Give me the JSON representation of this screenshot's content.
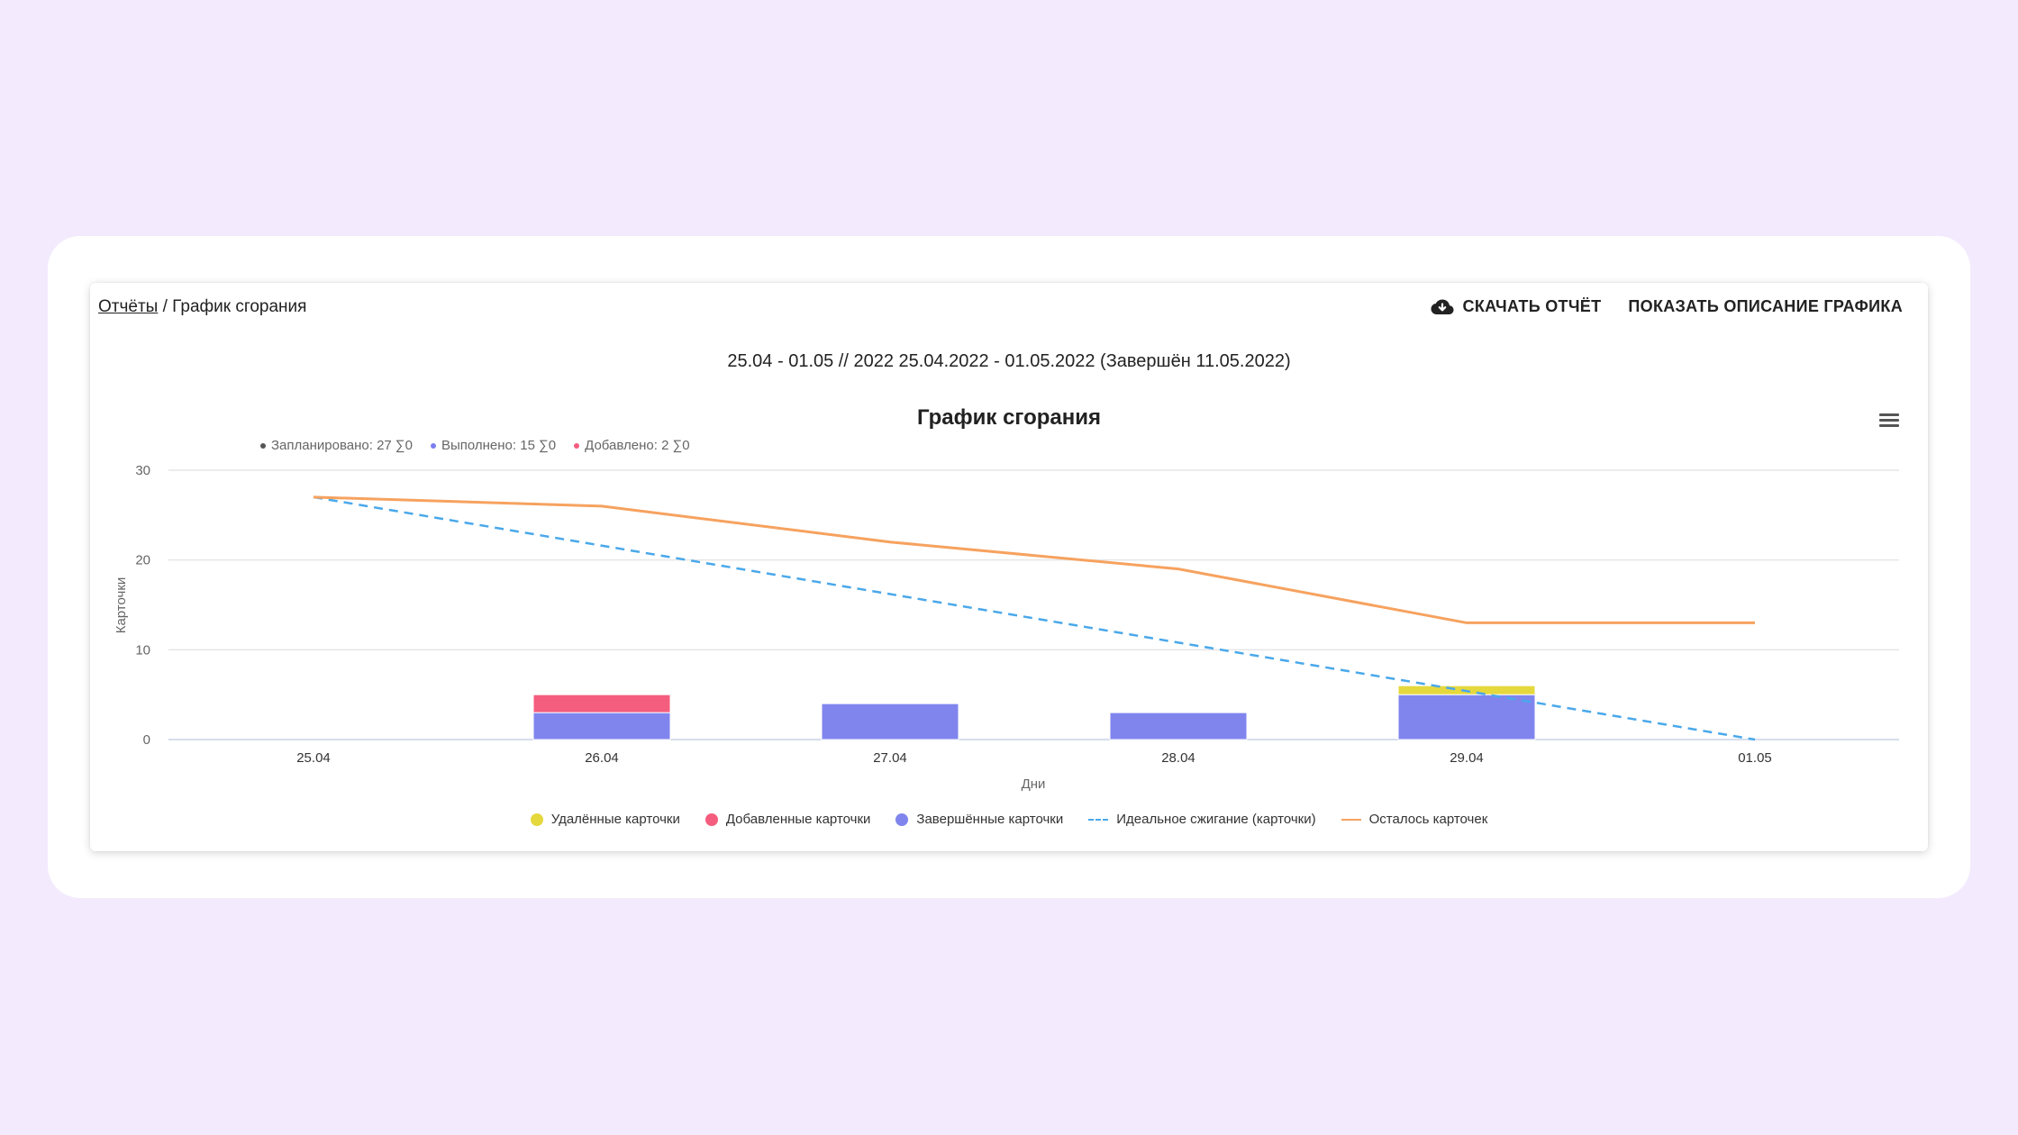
{
  "breadcrumb": {
    "link": "Отчёты",
    "separator": "/",
    "current": "График сгорания"
  },
  "actions": {
    "download": {
      "label": "СКАЧАТЬ ОТЧЁТ",
      "icon": "cloud-download-icon"
    },
    "show_description": {
      "label": "ПОКАЗАТЬ ОПИСАНИЕ ГРАФИКА"
    }
  },
  "period": "25.04 - 01.05 // 2022 25.04.2022 - 01.05.2022 (Завершён 11.05.2022)",
  "summary": [
    {
      "text": "Запланировано: 27 ∑0",
      "color": "#555555"
    },
    {
      "text": "Выполнено: 15 ∑0",
      "color": "#7b7ff0"
    },
    {
      "text": "Добавлено: 2 ∑0",
      "color": "#f45d7e"
    }
  ],
  "colors": {
    "removed": "#e5d83d",
    "added": "#f45d7e",
    "completed": "#8085ee",
    "ideal": "#4aa8ea",
    "remaining": "#f6a25f"
  },
  "chart_data": {
    "type": "bar",
    "title": "График сгорания",
    "xlabel": "Дни",
    "ylabel": "Карточки",
    "categories": [
      "25.04",
      "26.04",
      "27.04",
      "28.04",
      "29.04",
      "01.05"
    ],
    "ylim": [
      0,
      30
    ],
    "yticks": [
      0,
      10,
      20,
      30
    ],
    "grid": true,
    "series": [
      {
        "name": "Удалённые карточки",
        "type": "bar",
        "stacked": true,
        "values": [
          0,
          0,
          0,
          0,
          1,
          0
        ]
      },
      {
        "name": "Добавленные карточки",
        "type": "bar",
        "stacked": true,
        "values": [
          0,
          2,
          0,
          0,
          0,
          0
        ]
      },
      {
        "name": "Завершённые карточки",
        "type": "bar",
        "stacked": true,
        "values": [
          0,
          3,
          4,
          3,
          5,
          0
        ]
      },
      {
        "name": "Идеальное сжигание (карточки)",
        "type": "line",
        "dashed": true,
        "values": [
          27,
          21.6,
          16.2,
          10.8,
          5.4,
          0
        ]
      },
      {
        "name": "Осталось карточек",
        "type": "line",
        "values": [
          27,
          26,
          22,
          19,
          13,
          13
        ]
      }
    ],
    "legend_position": "bottom"
  }
}
